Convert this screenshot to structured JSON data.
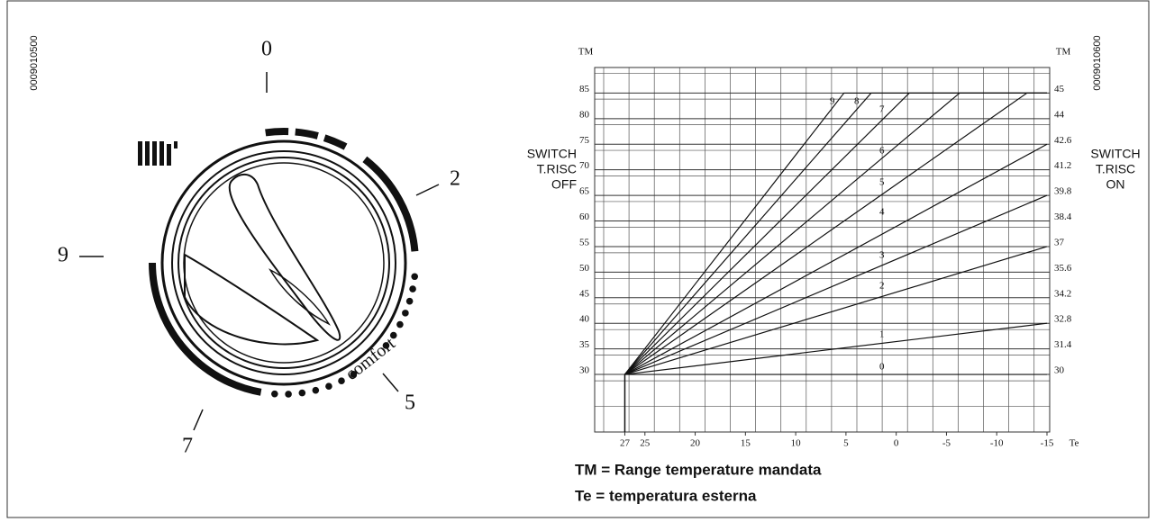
{
  "figure_codes": [
    "0009010500",
    "0009010600"
  ],
  "dial": {
    "positions": [
      "0",
      "2",
      "5",
      "7",
      "9"
    ],
    "comfort_label": "comfort"
  },
  "chart": {
    "type": "line",
    "y_axis_label": "TM",
    "y2_axis_label": "TM",
    "x_axis_label": "Te",
    "switch_off": [
      "SWITCH",
      "T.RISC",
      "OFF"
    ],
    "switch_on": [
      "SWITCH",
      "T.RISC",
      "ON"
    ],
    "xlim": [
      30,
      -15
    ],
    "ylim": [
      18.75,
      90
    ],
    "xticks": [
      27,
      25,
      20,
      15,
      10,
      5,
      0,
      -5,
      -10,
      -15
    ],
    "yticks": [
      30,
      35,
      40,
      45,
      50,
      55,
      60,
      65,
      70,
      75,
      80,
      85
    ],
    "y2ticks": [
      30,
      31.4,
      32.8,
      34.2,
      35.6,
      37,
      38.4,
      39.8,
      41.2,
      42.6,
      44,
      45
    ],
    "series": [
      {
        "name": "0",
        "x": [
          27,
          -15
        ],
        "values": [
          30,
          30
        ]
      },
      {
        "name": "1",
        "x": [
          27,
          -15
        ],
        "values": [
          30,
          40
        ]
      },
      {
        "name": "2",
        "x": [
          27,
          -15
        ],
        "values": [
          30,
          55
        ]
      },
      {
        "name": "3",
        "x": [
          27,
          -15
        ],
        "values": [
          30,
          65
        ]
      },
      {
        "name": "4",
        "x": [
          27,
          -15
        ],
        "values": [
          30,
          75
        ]
      },
      {
        "name": "5",
        "x": [
          27,
          -13,
          -15
        ],
        "values": [
          30,
          85,
          85
        ]
      },
      {
        "name": "6",
        "x": [
          27,
          -6.3,
          -15
        ],
        "values": [
          30,
          85,
          85
        ]
      },
      {
        "name": "7",
        "x": [
          27,
          -1.3,
          -15
        ],
        "values": [
          30,
          85,
          85
        ]
      },
      {
        "name": "8",
        "x": [
          27,
          2.5,
          -15
        ],
        "values": [
          30,
          85,
          85
        ]
      },
      {
        "name": "9",
        "x": [
          27,
          5.2,
          -15
        ],
        "values": [
          30,
          85,
          85
        ]
      }
    ]
  },
  "legend": [
    "TM = Range temperature mandata",
    "Te = temperatura esterna"
  ]
}
